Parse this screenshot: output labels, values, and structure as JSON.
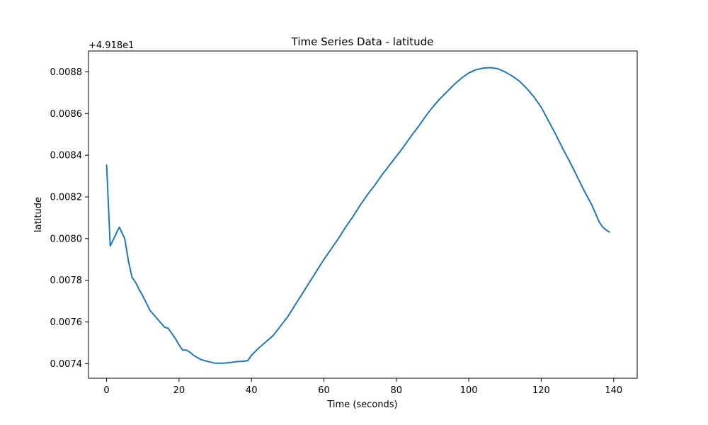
{
  "chart_data": {
    "type": "line",
    "title": "Time Series Data - latitude",
    "xlabel": "Time (seconds)",
    "ylabel": "latitude",
    "offset_label": "+4.918e1",
    "xlim": [
      -5,
      146.5
    ],
    "ylim": [
      0.00733,
      0.0089
    ],
    "x_ticks": [
      0,
      20,
      40,
      60,
      80,
      100,
      120,
      140
    ],
    "x_tick_labels": [
      "0",
      "20",
      "40",
      "60",
      "80",
      "100",
      "120",
      "140"
    ],
    "y_ticks": [
      0.0074,
      0.0076,
      0.0078,
      0.008,
      0.0082,
      0.0084,
      0.0086,
      0.0088
    ],
    "y_tick_labels": [
      "0.0074",
      "0.0076",
      "0.0078",
      "0.0080",
      "0.0082",
      "0.0084",
      "0.0086",
      "0.0088"
    ],
    "grid": false,
    "series": [
      {
        "color": "#1f77b4",
        "x": [
          0,
          1,
          3.5,
          5,
          6,
          7,
          8,
          9,
          10,
          11,
          12,
          14,
          16,
          17,
          18,
          19,
          20,
          21,
          22,
          23,
          24,
          26,
          28,
          30,
          32,
          34,
          36,
          38,
          39,
          40,
          42,
          44,
          46,
          48,
          50,
          52,
          54,
          56,
          58,
          60,
          62,
          64,
          66,
          68,
          70,
          72,
          74,
          76,
          78,
          80,
          82,
          84,
          86,
          88,
          90,
          92,
          94,
          96,
          98,
          100,
          102,
          104,
          106,
          108,
          110,
          112,
          114,
          116,
          118,
          120,
          122,
          124,
          126,
          128,
          130,
          132,
          134,
          136,
          137,
          138,
          139
        ],
        "y": [
          0.008355,
          0.007965,
          0.008055,
          0.008,
          0.007895,
          0.007815,
          0.00779,
          0.007755,
          0.007725,
          0.00769,
          0.007655,
          0.007615,
          0.007575,
          0.00757,
          0.007545,
          0.00752,
          0.00749,
          0.007465,
          0.007465,
          0.007455,
          0.00744,
          0.00742,
          0.00741,
          0.007402,
          0.007402,
          0.007405,
          0.00741,
          0.007412,
          0.007415,
          0.00744,
          0.007475,
          0.007505,
          0.007535,
          0.00758,
          0.007625,
          0.00768,
          0.007735,
          0.00779,
          0.007845,
          0.0079,
          0.00795,
          0.008,
          0.008055,
          0.008105,
          0.00816,
          0.00821,
          0.008255,
          0.008305,
          0.00835,
          0.008395,
          0.00844,
          0.00849,
          0.008535,
          0.008585,
          0.00863,
          0.00867,
          0.008705,
          0.00874,
          0.00877,
          0.008795,
          0.00881,
          0.008818,
          0.00882,
          0.008815,
          0.0088,
          0.00878,
          0.008755,
          0.00872,
          0.00868,
          0.00863,
          0.008565,
          0.0085,
          0.00843,
          0.008365,
          0.008295,
          0.008225,
          0.00816,
          0.00808,
          0.008055,
          0.00804,
          0.00803
        ]
      }
    ]
  },
  "colors": {
    "line": "#1f77b4",
    "axes": "#000000",
    "background": "#ffffff"
  }
}
